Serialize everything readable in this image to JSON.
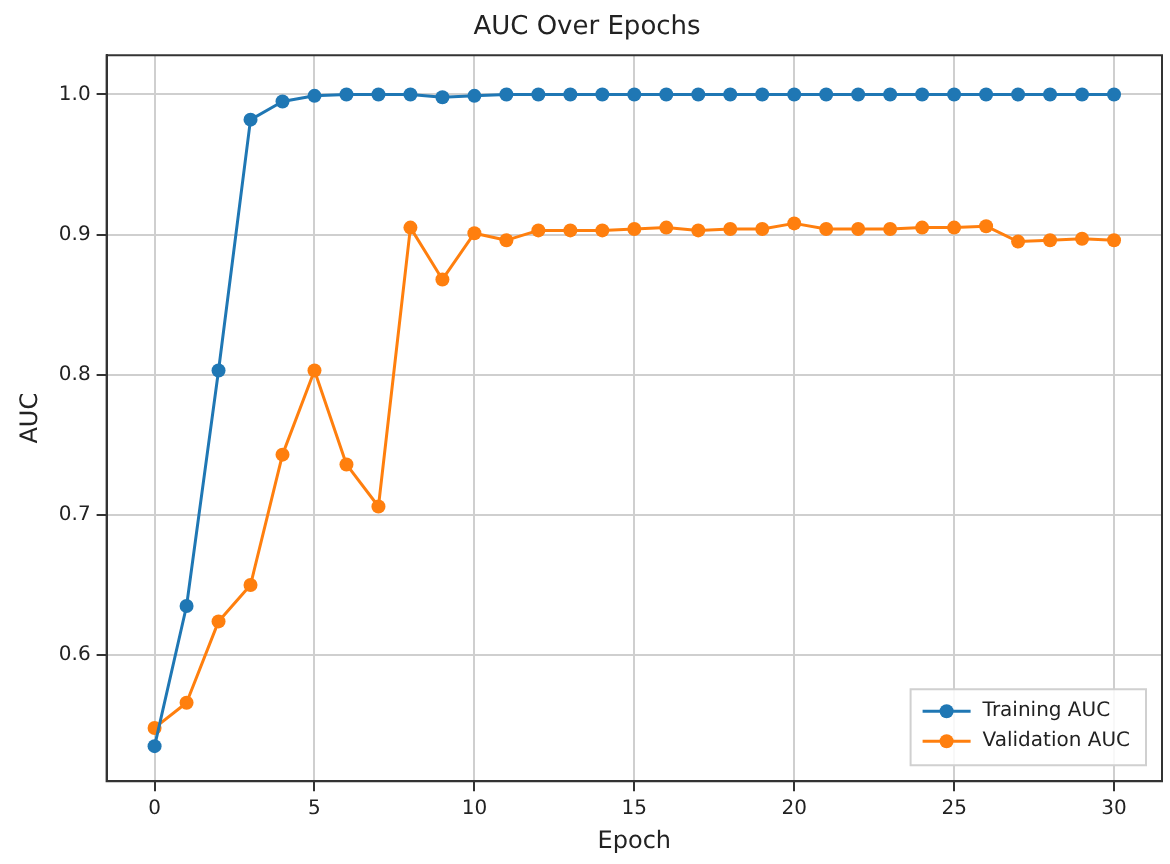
{
  "chart_data": {
    "type": "line",
    "title": "AUC Over Epochs",
    "xlabel": "Epoch",
    "ylabel": "AUC",
    "x": [
      0,
      1,
      2,
      3,
      4,
      5,
      6,
      7,
      8,
      9,
      10,
      11,
      12,
      13,
      14,
      15,
      16,
      17,
      18,
      19,
      20,
      21,
      22,
      23,
      24,
      25,
      26,
      27,
      28,
      29,
      30
    ],
    "series": [
      {
        "name": "Training AUC",
        "color": "#1f77b4",
        "values": [
          0.535,
          0.635,
          0.803,
          0.982,
          0.995,
          0.999,
          1.0,
          1.0,
          1.0,
          0.998,
          0.999,
          1.0,
          1.0,
          1.0,
          1.0,
          1.0,
          1.0,
          1.0,
          1.0,
          1.0,
          1.0,
          1.0,
          1.0,
          1.0,
          1.0,
          1.0,
          1.0,
          1.0,
          1.0,
          1.0,
          1.0
        ]
      },
      {
        "name": "Validation AUC",
        "color": "#ff7f0e",
        "values": [
          0.548,
          0.566,
          0.624,
          0.65,
          0.743,
          0.803,
          0.736,
          0.706,
          0.905,
          0.868,
          0.901,
          0.896,
          0.903,
          0.903,
          0.903,
          0.904,
          0.905,
          0.903,
          0.904,
          0.904,
          0.908,
          0.904,
          0.904,
          0.904,
          0.905,
          0.905,
          0.906,
          0.895,
          0.896,
          0.897,
          0.896
        ]
      }
    ],
    "xlim": [
      -1.5,
      31.5
    ],
    "xticks": [
      0,
      5,
      10,
      15,
      20,
      25,
      30
    ],
    "ylim": [
      0.51,
      1.028
    ],
    "yticks": [
      0.6,
      0.7,
      0.8,
      0.9,
      {
        "value": 1,
        "label": "1.0"
      }
    ],
    "grid": true,
    "legend": "bottom right",
    "marker": "circle",
    "line_style": "solid"
  }
}
